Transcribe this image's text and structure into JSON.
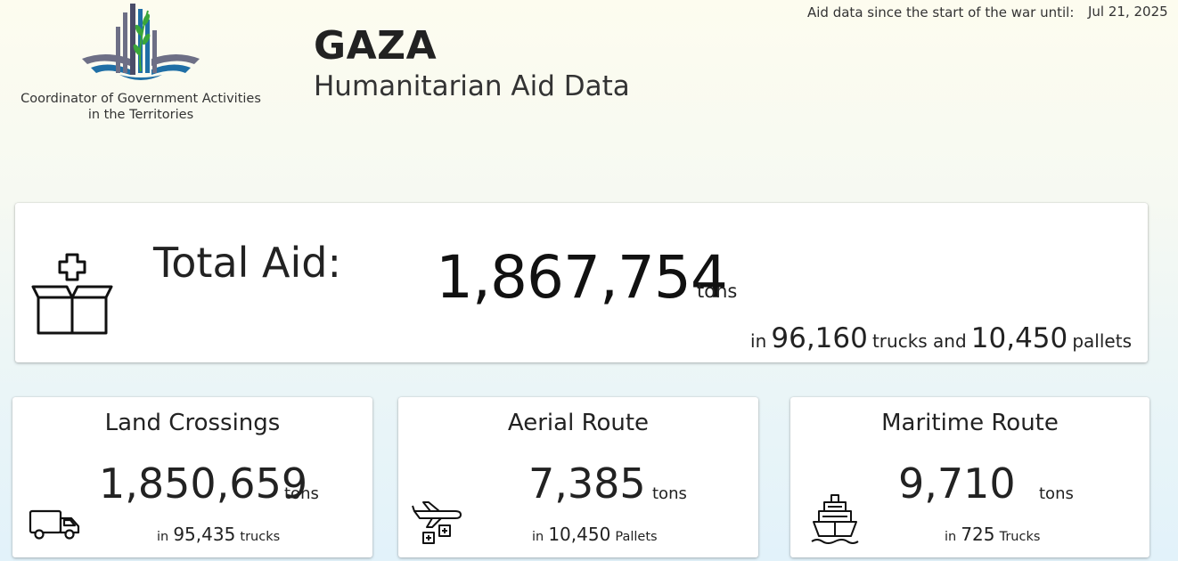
{
  "header": {
    "org_name_line1": "Coordinator of Government Activities",
    "org_name_line2": "in the Territories",
    "title": "GAZA",
    "subtitle": "Humanitarian Aid Data",
    "date_label": "Aid data since the start of the war until:",
    "date_value": "Jul 21, 2025"
  },
  "total": {
    "icon": "aid-box-icon",
    "label": "Total Aid:",
    "value": "1,867,754",
    "unit": "tons",
    "prefix": "in",
    "trucks": "96,160",
    "trucks_label": "trucks and",
    "pallets": "10,450",
    "pallets_label": "pallets"
  },
  "routes": {
    "land": {
      "icon": "truck-icon",
      "title": "Land Crossings",
      "value": "1,850,659",
      "unit": "tons",
      "prefix": "in",
      "count": "95,435",
      "count_label": "trucks"
    },
    "aerial": {
      "icon": "airdrop-icon",
      "title": "Aerial Route",
      "value": "7,385",
      "unit": "tons",
      "prefix": "in",
      "count": "10,450",
      "count_label": "Pallets"
    },
    "maritime": {
      "icon": "ship-icon",
      "title": "Maritime Route",
      "value": "9,710",
      "unit": "tons",
      "prefix": "in",
      "count": "725",
      "count_label": "Trucks"
    }
  },
  "colors": {
    "logo_blue": "#1f6fa6",
    "logo_green": "#3aa63a",
    "logo_grey": "#6d6f86",
    "text": "#222222"
  }
}
